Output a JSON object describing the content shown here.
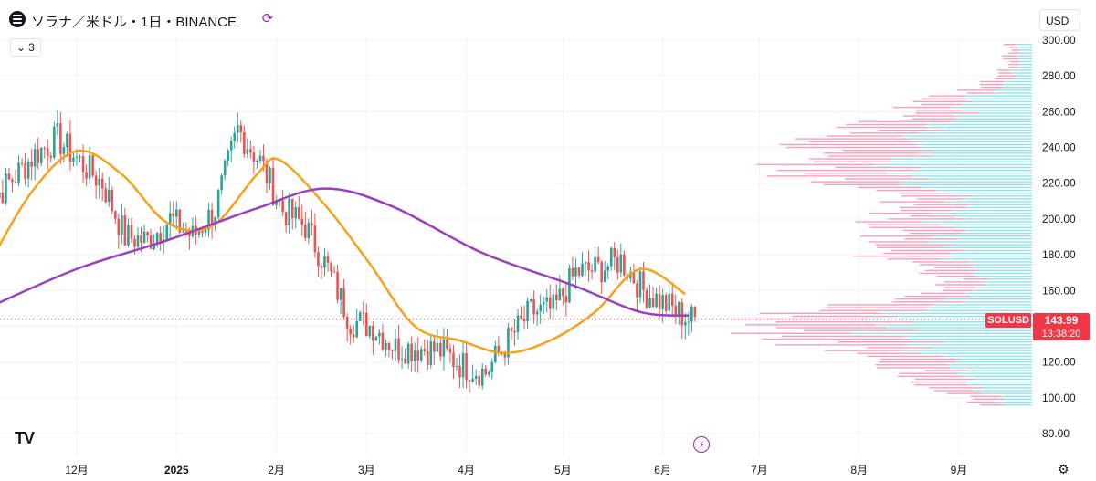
{
  "header": {
    "title": "ソラナ／米ドル・1日・BINANCE",
    "indicator_count": "3",
    "currency": "USD"
  },
  "price": {
    "symbol": "SOLUSD",
    "last": "143.99",
    "countdown": "13:38:20"
  },
  "icons": {
    "logo": "solana-logo-icon",
    "share": "share-icon",
    "chevron": "chevron-down-icon",
    "flash": "lightning-icon",
    "settings": "gear-icon",
    "brand": "tradingview-logo"
  },
  "colors": {
    "up": "#26a69a",
    "down": "#ef5350",
    "ma_fast": "#f7a21b",
    "ma_slow": "#9c3fbf",
    "vp_up": "#80deea",
    "vp_down": "#f48fb1",
    "last_price": "#f23645"
  },
  "chart_data": {
    "type": "candlestick",
    "x_ticks": [
      "12月",
      "2025",
      "2月",
      "3月",
      "4月",
      "5月",
      "6月",
      "7月",
      "8月",
      "9月"
    ],
    "y_ticks": [
      80,
      100,
      120,
      140,
      160,
      180,
      200,
      220,
      240,
      260,
      280,
      300
    ],
    "ylim": [
      75,
      302
    ],
    "y_unit_suffix": ".00",
    "grid": true,
    "last_price_line": 143.99,
    "weekly_closes": [
      {
        "t": "2024-11-18",
        "c": 236
      },
      {
        "t": "2024-11-25",
        "c": 245
      },
      {
        "t": "2024-12-02",
        "c": 232
      },
      {
        "t": "2024-12-09",
        "c": 220
      },
      {
        "t": "2024-12-16",
        "c": 190
      },
      {
        "t": "2024-12-23",
        "c": 188
      },
      {
        "t": "2024-12-30",
        "c": 200
      },
      {
        "t": "2025-01-06",
        "c": 190
      },
      {
        "t": "2025-01-13",
        "c": 205
      },
      {
        "t": "2025-01-20",
        "c": 250
      },
      {
        "t": "2025-01-27",
        "c": 232
      },
      {
        "t": "2025-02-03",
        "c": 205
      },
      {
        "t": "2025-02-10",
        "c": 196
      },
      {
        "t": "2025-02-17",
        "c": 172
      },
      {
        "t": "2025-02-24",
        "c": 143
      },
      {
        "t": "2025-03-03",
        "c": 140
      },
      {
        "t": "2025-03-10",
        "c": 128
      },
      {
        "t": "2025-03-17",
        "c": 128
      },
      {
        "t": "2025-03-24",
        "c": 126
      },
      {
        "t": "2025-03-31",
        "c": 118
      },
      {
        "t": "2025-04-07",
        "c": 114
      },
      {
        "t": "2025-04-14",
        "c": 132
      },
      {
        "t": "2025-04-21",
        "c": 148
      },
      {
        "t": "2025-04-28",
        "c": 149
      },
      {
        "t": "2025-05-05",
        "c": 170
      },
      {
        "t": "2025-05-12",
        "c": 172
      },
      {
        "t": "2025-05-19",
        "c": 177
      },
      {
        "t": "2025-05-26",
        "c": 160
      },
      {
        "t": "2025-06-02",
        "c": 152
      },
      {
        "t": "2025-06-09",
        "c": 144
      }
    ],
    "ma_fast": [
      {
        "t": "2024-11-03",
        "v": 172
      },
      {
        "t": "2024-11-17",
        "v": 215
      },
      {
        "t": "2024-12-01",
        "v": 238
      },
      {
        "t": "2024-12-15",
        "v": 225
      },
      {
        "t": "2024-12-29",
        "v": 198
      },
      {
        "t": "2025-01-12",
        "v": 196
      },
      {
        "t": "2025-01-26",
        "v": 225
      },
      {
        "t": "2025-02-02",
        "v": 233
      },
      {
        "t": "2025-02-16",
        "v": 208
      },
      {
        "t": "2025-03-02",
        "v": 175
      },
      {
        "t": "2025-03-16",
        "v": 140
      },
      {
        "t": "2025-03-30",
        "v": 132
      },
      {
        "t": "2025-04-13",
        "v": 125
      },
      {
        "t": "2025-04-27",
        "v": 132
      },
      {
        "t": "2025-05-11",
        "v": 148
      },
      {
        "t": "2025-05-25",
        "v": 172
      },
      {
        "t": "2025-06-08",
        "v": 158
      }
    ],
    "ma_slow": [
      {
        "t": "2024-11-03",
        "v": 150
      },
      {
        "t": "2024-12-01",
        "v": 172
      },
      {
        "t": "2024-12-29",
        "v": 188
      },
      {
        "t": "2025-01-26",
        "v": 206
      },
      {
        "t": "2025-02-16",
        "v": 217
      },
      {
        "t": "2025-03-09",
        "v": 207
      },
      {
        "t": "2025-04-06",
        "v": 181
      },
      {
        "t": "2025-05-04",
        "v": 163
      },
      {
        "t": "2025-05-25",
        "v": 148
      },
      {
        "t": "2025-06-09",
        "v": 146
      }
    ]
  }
}
